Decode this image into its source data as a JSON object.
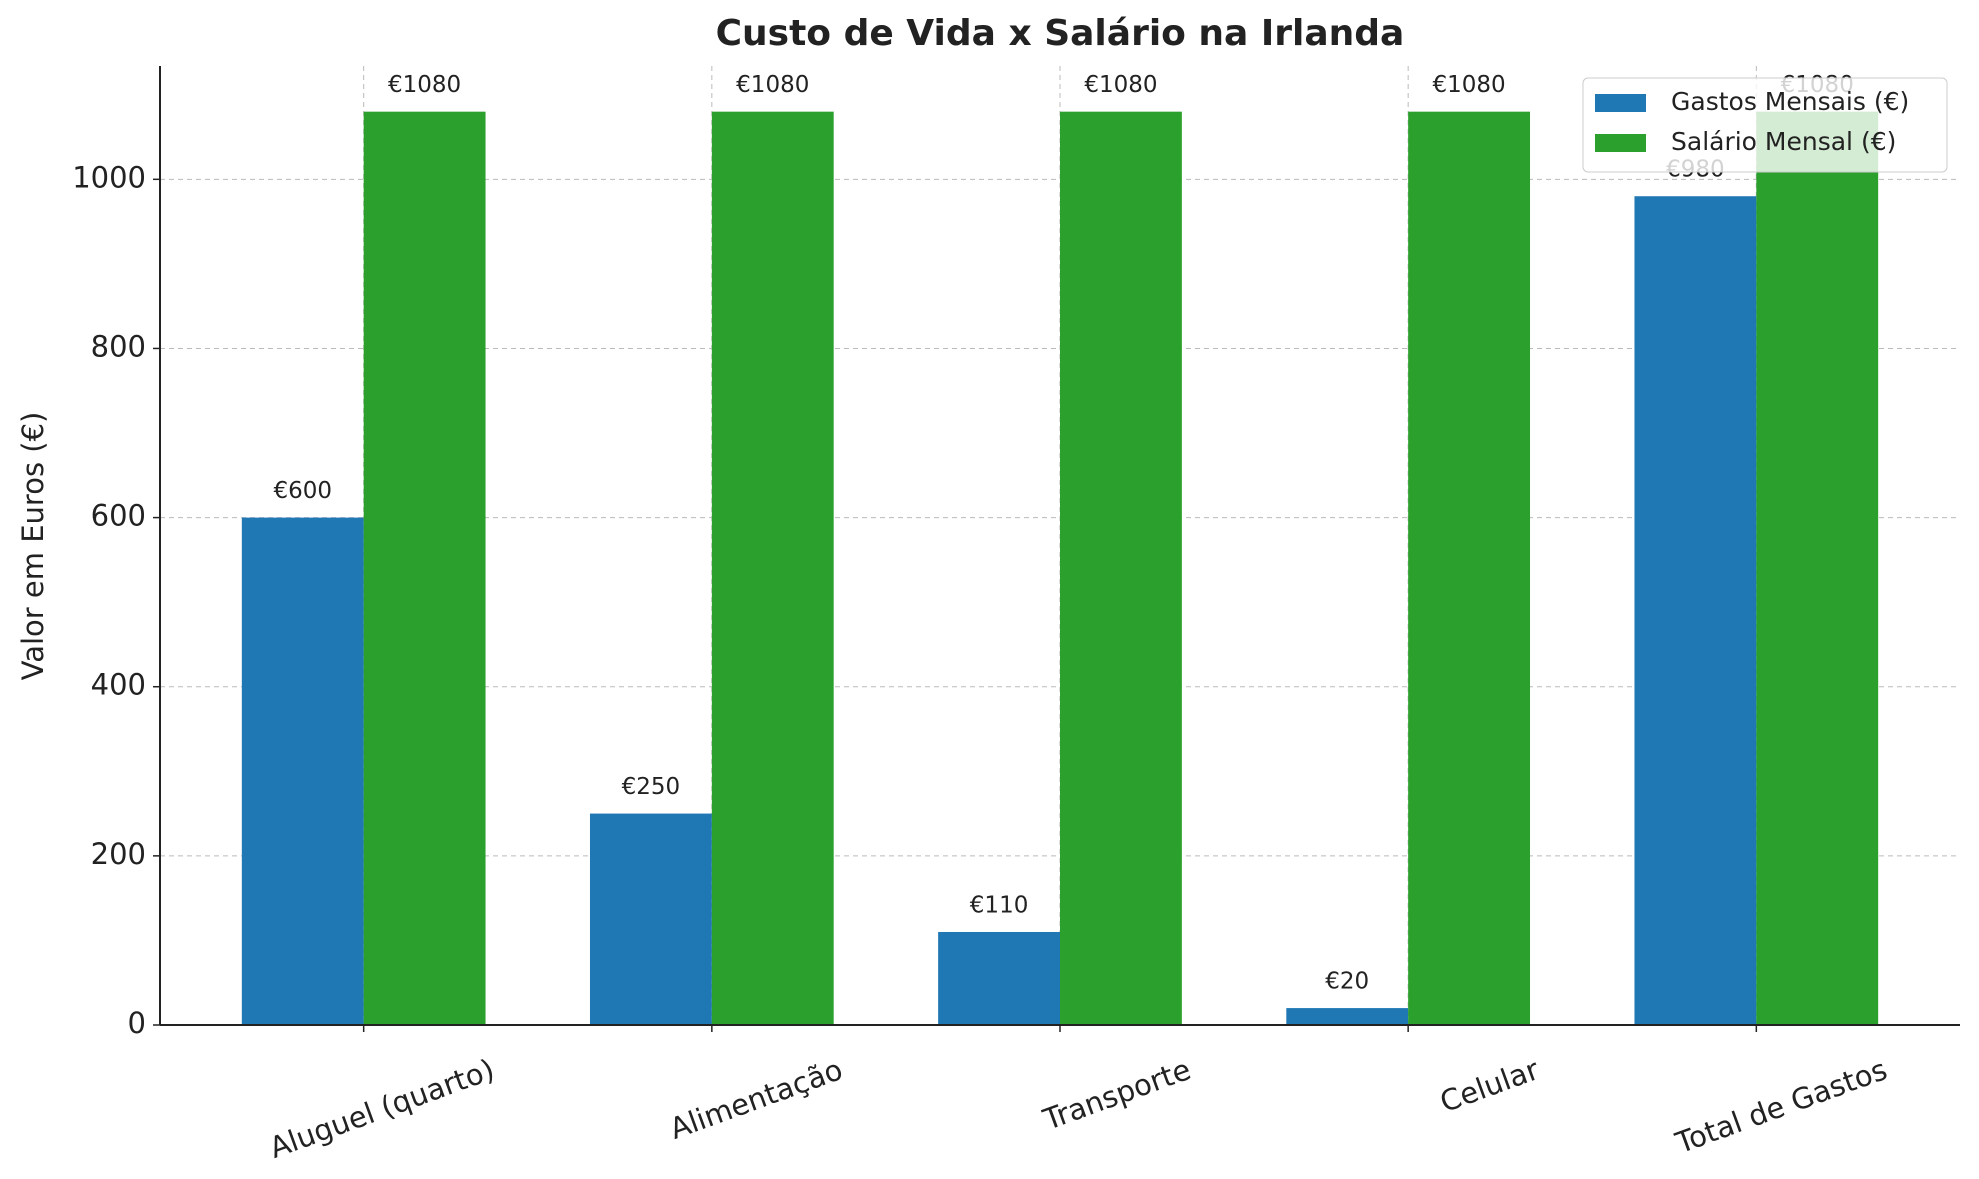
{
  "chart_data": {
    "type": "bar",
    "title": "Custo de Vida x Salário na Irlanda",
    "y_label": "Valor em Euros (€)",
    "categories": [
      "Aluguel (quarto)",
      "Alimentação",
      "Transporte",
      "Celular",
      "Total de Gastos"
    ],
    "series": [
      {
        "name": "Gastos Mensais (€)",
        "color": "#1f77b4",
        "values": [
          600,
          250,
          110,
          20,
          980
        ],
        "value_labels": [
          "€600",
          "€250",
          "€110",
          "€20",
          "€980"
        ]
      },
      {
        "name": "Salário Mensal (€)",
        "color": "#2ca02c",
        "values": [
          1080,
          1080,
          1080,
          1080,
          1080
        ],
        "value_labels": [
          "€1080",
          "€1080",
          "€1080",
          "€1080",
          "€1080"
        ]
      }
    ],
    "ylim": [
      0,
      1134
    ],
    "yticks": [
      0,
      200,
      400,
      600,
      800,
      1000
    ],
    "grid": true,
    "legend": "upper right"
  }
}
